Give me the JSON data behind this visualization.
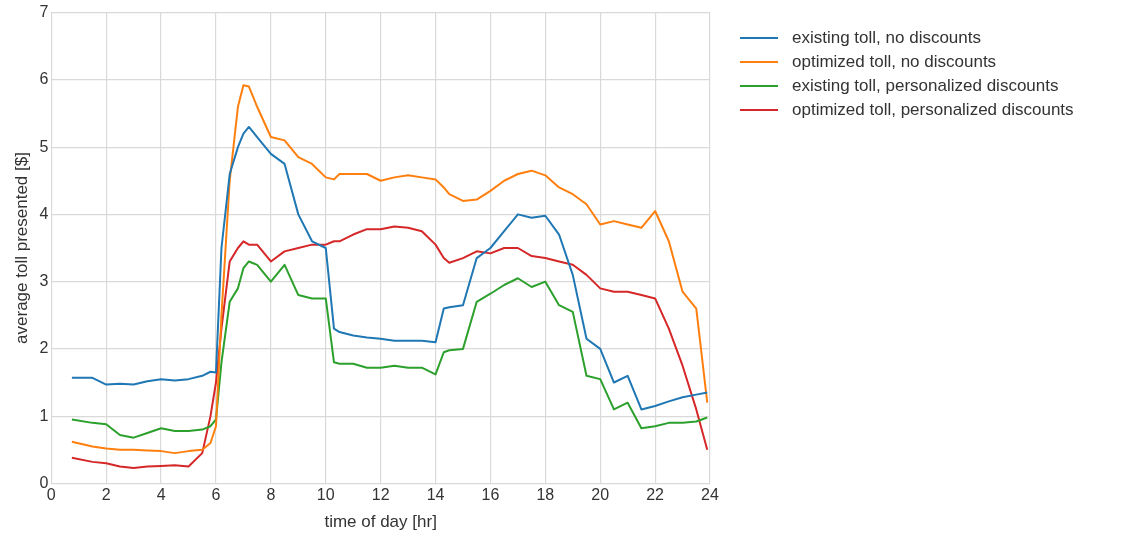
{
  "chart_data": {
    "type": "line",
    "xlabel": "time of day [hr]",
    "ylabel": "average toll presented [$]",
    "x": [
      0.75,
      1.5,
      2,
      2.5,
      3,
      3.5,
      4,
      4.5,
      5,
      5.5,
      5.8,
      6,
      6.2,
      6.5,
      6.8,
      7,
      7.2,
      7.5,
      8,
      8.5,
      9,
      9.5,
      10,
      10.3,
      10.5,
      11,
      11.5,
      12,
      12.5,
      13,
      13.5,
      14,
      14.3,
      14.5,
      15,
      15.5,
      16,
      16.5,
      17,
      17.5,
      18,
      18.5,
      19,
      19.5,
      20,
      20.5,
      21,
      21.5,
      22,
      22.5,
      23,
      23.5,
      23.9
    ],
    "series": [
      {
        "name": "existing toll, no discounts",
        "color": "#1f77b4",
        "values": [
          1.57,
          1.57,
          1.47,
          1.48,
          1.47,
          1.52,
          1.55,
          1.53,
          1.55,
          1.6,
          1.66,
          1.65,
          3.5,
          4.6,
          5.0,
          5.2,
          5.3,
          5.15,
          4.9,
          4.75,
          4.0,
          3.6,
          3.5,
          2.3,
          2.25,
          2.2,
          2.17,
          2.15,
          2.12,
          2.12,
          2.12,
          2.1,
          2.6,
          2.62,
          2.65,
          3.35,
          3.5,
          3.75,
          4.0,
          3.95,
          3.98,
          3.7,
          3.1,
          2.15,
          2.0,
          1.5,
          1.6,
          1.1,
          1.15,
          1.22,
          1.28,
          1.32,
          1.35
        ]
      },
      {
        "name": "optimized toll, no discounts",
        "color": "#ff7f0e",
        "values": [
          0.62,
          0.55,
          0.52,
          0.5,
          0.5,
          0.49,
          0.48,
          0.45,
          0.48,
          0.5,
          0.6,
          0.85,
          2.5,
          4.5,
          5.6,
          5.92,
          5.9,
          5.6,
          5.15,
          5.1,
          4.85,
          4.75,
          4.55,
          4.52,
          4.6,
          4.6,
          4.6,
          4.5,
          4.55,
          4.58,
          4.55,
          4.52,
          4.4,
          4.3,
          4.2,
          4.22,
          4.35,
          4.5,
          4.6,
          4.65,
          4.58,
          4.4,
          4.3,
          4.15,
          3.85,
          3.9,
          3.85,
          3.8,
          4.05,
          3.6,
          2.85,
          2.6,
          1.2
        ]
      },
      {
        "name": "existing toll, personalized discounts",
        "color": "#2ca02c",
        "values": [
          0.95,
          0.9,
          0.88,
          0.72,
          0.68,
          0.75,
          0.82,
          0.78,
          0.78,
          0.8,
          0.85,
          0.95,
          1.8,
          2.7,
          2.9,
          3.2,
          3.3,
          3.25,
          3.0,
          3.25,
          2.8,
          2.75,
          2.75,
          1.8,
          1.78,
          1.78,
          1.72,
          1.72,
          1.75,
          1.72,
          1.72,
          1.62,
          1.95,
          1.98,
          2.0,
          2.7,
          2.82,
          2.95,
          3.05,
          2.92,
          3.0,
          2.65,
          2.55,
          1.6,
          1.55,
          1.1,
          1.2,
          0.82,
          0.85,
          0.9,
          0.9,
          0.92,
          0.98
        ]
      },
      {
        "name": "optimized toll, personalized discounts",
        "color": "#d62728",
        "values": [
          0.38,
          0.32,
          0.3,
          0.25,
          0.23,
          0.25,
          0.26,
          0.27,
          0.25,
          0.45,
          1.0,
          1.5,
          2.3,
          3.3,
          3.5,
          3.6,
          3.55,
          3.55,
          3.3,
          3.45,
          3.5,
          3.55,
          3.55,
          3.6,
          3.6,
          3.7,
          3.78,
          3.78,
          3.82,
          3.8,
          3.75,
          3.55,
          3.35,
          3.28,
          3.35,
          3.45,
          3.42,
          3.5,
          3.5,
          3.38,
          3.35,
          3.3,
          3.25,
          3.1,
          2.9,
          2.85,
          2.85,
          2.8,
          2.75,
          2.3,
          1.75,
          1.1,
          0.5
        ]
      }
    ],
    "xlim": [
      0,
      24
    ],
    "xticks": [
      0,
      2,
      4,
      6,
      8,
      10,
      12,
      14,
      16,
      18,
      20,
      22,
      24
    ],
    "ylim": [
      0,
      7
    ],
    "yticks": [
      0,
      1,
      2,
      3,
      4,
      5,
      6,
      7
    ],
    "grid": true,
    "legend": "right"
  }
}
